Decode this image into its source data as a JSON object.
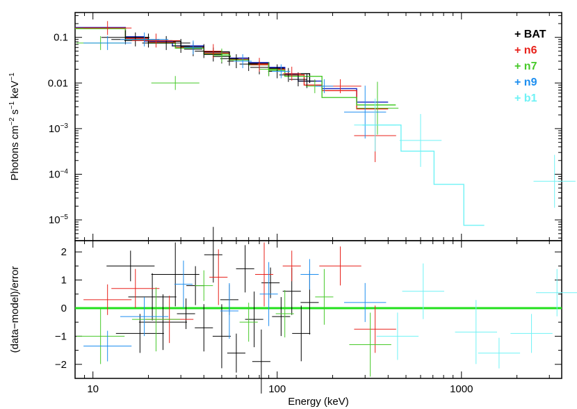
{
  "chart_data": {
    "type": "scatter",
    "xscale": "log",
    "xlim": [
      8,
      3500
    ],
    "xlabel": "Energy (keV)",
    "x_tick_labels": [
      {
        "value": 10,
        "label": "10"
      },
      {
        "value": 100,
        "label": "100"
      },
      {
        "value": 1000,
        "label": "1000"
      }
    ],
    "legend_position": "top-right",
    "series": [
      {
        "name": "+ BAT",
        "color": "#000000"
      },
      {
        "name": "+ n6",
        "color": "#e8211a"
      },
      {
        "name": "+ n7",
        "color": "#46c928"
      },
      {
        "name": "+ n9",
        "color": "#1c8ef0"
      },
      {
        "name": "+ b1",
        "color": "#6ff2f5"
      }
    ],
    "panels": [
      {
        "id": "spectrum",
        "ylabel_parts": [
          "Photons cm",
          "−2",
          " s",
          "−1",
          " keV",
          "−1"
        ],
        "yscale": "log",
        "ylim": [
          3.5e-06,
          0.35
        ],
        "y_tick_labels": [
          {
            "value": 0.1,
            "label": "0.1"
          },
          {
            "value": 0.01,
            "label": "0.01"
          },
          {
            "value": 0.001,
            "base": "10",
            "exp": "−3"
          },
          {
            "value": 0.0001,
            "base": "10",
            "exp": "−4"
          },
          {
            "value": 1e-05,
            "base": "10",
            "exp": "−5"
          }
        ],
        "models": [
          {
            "series": "+ BAT",
            "color": "#000000",
            "steps": [
              [
                8,
                0.16
              ],
              [
                15,
                0.1
              ],
              [
                20,
                0.082
              ],
              [
                30,
                0.062
              ],
              [
                40,
                0.048
              ],
              [
                55,
                0.035
              ],
              [
                70,
                0.027
              ],
              [
                90,
                0.021
              ],
              [
                110,
                0.016
              ],
              [
                150,
                0.01
              ]
            ]
          },
          {
            "series": "+ n9",
            "color": "#1020c0",
            "steps": [
              [
                8,
                0.165
              ],
              [
                15,
                0.103
              ],
              [
                19,
                0.083
              ],
              [
                27,
                0.065
              ],
              [
                40,
                0.045
              ],
              [
                55,
                0.035
              ],
              [
                70,
                0.028
              ],
              [
                90,
                0.022
              ],
              [
                110,
                0.016
              ],
              [
                130,
                0.011
              ],
              [
                175,
                0.0075
              ],
              [
                270,
                0.0038
              ],
              [
                400,
                0.0038
              ]
            ]
          },
          {
            "series": "+ n6",
            "color": "#e8211a",
            "steps": [
              [
                8,
                0.16
              ],
              [
                15,
                0.095
              ],
              [
                20,
                0.078
              ],
              [
                28,
                0.06
              ],
              [
                40,
                0.045
              ],
              [
                55,
                0.033
              ],
              [
                70,
                0.026
              ],
              [
                90,
                0.02
              ],
              [
                110,
                0.015
              ],
              [
                140,
                0.009
              ],
              [
                175,
                0.0068
              ],
              [
                270,
                0.0027
              ],
              [
                400,
                0.0027
              ]
            ]
          },
          {
            "series": "+ n7",
            "color": "#46c928",
            "steps": [
              [
                8,
                0.155
              ],
              [
                15,
                0.09
              ],
              [
                20,
                0.075
              ],
              [
                28,
                0.058
              ],
              [
                40,
                0.043
              ],
              [
                55,
                0.032
              ],
              [
                70,
                0.025
              ],
              [
                90,
                0.019
              ],
              [
                110,
                0.014
              ],
              [
                175,
                0.0048
              ],
              [
                270,
                0.0033
              ],
              [
                440,
                0.0033
              ]
            ]
          },
          {
            "series": "+ b1",
            "color": "#6ff2f5",
            "steps": [
              [
                290,
                0.0012
              ],
              [
                460,
                0.0012
              ],
              [
                470,
                0.00032
              ],
              [
                700,
                0.00032
              ],
              [
                710,
                6e-05
              ],
              [
                1020,
                6e-05
              ],
              [
                1030,
                7.6e-06
              ],
              [
                1330,
                7.6e-06
              ]
            ]
          }
        ],
        "points": [
          {
            "series": "+ BAT",
            "x": 15,
            "y": 0.1
          },
          {
            "series": "+ BAT",
            "x": 17,
            "y": 0.09
          },
          {
            "series": "+ BAT",
            "x": 20,
            "y": 0.085
          },
          {
            "series": "+ BAT",
            "x": 25,
            "y": 0.075
          },
          {
            "series": "+ BAT",
            "x": 30,
            "y": 0.065
          },
          {
            "series": "+ BAT",
            "x": 35,
            "y": 0.055
          },
          {
            "series": "+ BAT",
            "x": 40,
            "y": 0.05
          },
          {
            "series": "+ BAT",
            "x": 45,
            "y": 0.042
          },
          {
            "series": "+ BAT",
            "x": 50,
            "y": 0.038
          },
          {
            "series": "+ BAT",
            "x": 55,
            "y": 0.034
          },
          {
            "series": "+ BAT",
            "x": 60,
            "y": 0.03
          },
          {
            "series": "+ BAT",
            "x": 70,
            "y": 0.026
          },
          {
            "series": "+ BAT",
            "x": 80,
            "y": 0.022
          },
          {
            "series": "+ BAT",
            "x": 90,
            "y": 0.02
          },
          {
            "series": "+ BAT",
            "x": 100,
            "y": 0.018
          },
          {
            "series": "+ BAT",
            "x": 115,
            "y": 0.015
          },
          {
            "series": "+ BAT",
            "x": 130,
            "y": 0.012
          },
          {
            "series": "+ BAT",
            "x": 145,
            "y": 0.011
          },
          {
            "series": "+ n6",
            "x": 12,
            "y": 0.16
          },
          {
            "series": "+ n6",
            "x": 22,
            "y": 0.085
          },
          {
            "series": "+ n6",
            "x": 45,
            "y": 0.05
          },
          {
            "series": "+ n6",
            "x": 80,
            "y": 0.025
          },
          {
            "series": "+ n6",
            "x": 120,
            "y": 0.016
          },
          {
            "series": "+ n6",
            "x": 220,
            "y": 0.0085
          },
          {
            "series": "+ n6",
            "x": 340,
            "y": 0.0007
          },
          {
            "series": "+ n7",
            "x": 11,
            "y": 0.075
          },
          {
            "series": "+ n7",
            "x": 28,
            "y": 0.01
          },
          {
            "series": "+ n7",
            "x": 50,
            "y": 0.04
          },
          {
            "series": "+ n7",
            "x": 90,
            "y": 0.02
          },
          {
            "series": "+ n7",
            "x": 160,
            "y": 0.0085
          },
          {
            "series": "+ n7",
            "x": 350,
            "y": 0.0028
          },
          {
            "series": "+ n9",
            "x": 12,
            "y": 0.075
          },
          {
            "series": "+ n9",
            "x": 19,
            "y": 0.09
          },
          {
            "series": "+ n9",
            "x": 35,
            "y": 0.06
          },
          {
            "series": "+ n9",
            "x": 65,
            "y": 0.03
          },
          {
            "series": "+ n9",
            "x": 105,
            "y": 0.018
          },
          {
            "series": "+ n9",
            "x": 180,
            "y": 0.0085
          },
          {
            "series": "+ n9",
            "x": 300,
            "y": 0.0023
          },
          {
            "series": "+ b1",
            "x": 340,
            "y": 0.0012
          },
          {
            "series": "+ b1",
            "x": 600,
            "y": 0.00055
          },
          {
            "series": "+ b1",
            "x": 3200,
            "y": 7e-05
          }
        ]
      },
      {
        "id": "residuals",
        "ylabel": "(data−model)/error",
        "yscale": "linear",
        "ylim": [
          -2.5,
          2.4
        ],
        "y_tick_labels": [
          {
            "value": 2,
            "label": "2"
          },
          {
            "value": 1,
            "label": "1"
          },
          {
            "value": 0,
            "label": "0"
          },
          {
            "value": -1,
            "label": "−1"
          },
          {
            "value": -2,
            "label": "−2"
          }
        ],
        "zero_line": {
          "value": 0,
          "color": "#22e01c"
        },
        "points": [
          {
            "series": "+ BAT",
            "x": 16,
            "y": 1.5
          },
          {
            "series": "+ BAT",
            "x": 18,
            "y": -0.9
          },
          {
            "series": "+ BAT",
            "x": 21,
            "y": 0.4
          },
          {
            "series": "+ BAT",
            "x": 24,
            "y": -0.5
          },
          {
            "series": "+ BAT",
            "x": 28,
            "y": 1.2
          },
          {
            "series": "+ BAT",
            "x": 32,
            "y": -0.2
          },
          {
            "series": "+ BAT",
            "x": 36,
            "y": 0.8
          },
          {
            "series": "+ BAT",
            "x": 40,
            "y": -0.7
          },
          {
            "series": "+ BAT",
            "x": 45,
            "y": 1.9
          },
          {
            "series": "+ BAT",
            "x": 50,
            "y": -1.0
          },
          {
            "series": "+ BAT",
            "x": 55,
            "y": 0.3
          },
          {
            "series": "+ BAT",
            "x": 60,
            "y": -1.6
          },
          {
            "series": "+ BAT",
            "x": 67,
            "y": 1.4
          },
          {
            "series": "+ BAT",
            "x": 75,
            "y": -0.4
          },
          {
            "series": "+ BAT",
            "x": 82,
            "y": -1.9
          },
          {
            "series": "+ BAT",
            "x": 92,
            "y": 0.9
          },
          {
            "series": "+ BAT",
            "x": 105,
            "y": -0.3
          },
          {
            "series": "+ BAT",
            "x": 120,
            "y": 0.6
          },
          {
            "series": "+ BAT",
            "x": 135,
            "y": -0.9
          },
          {
            "series": "+ BAT",
            "x": 150,
            "y": 0.2
          },
          {
            "series": "+ n6",
            "x": 12,
            "y": 0.3
          },
          {
            "series": "+ n6",
            "x": 17,
            "y": 0.7
          },
          {
            "series": "+ n6",
            "x": 26,
            "y": -0.4
          },
          {
            "series": "+ n6",
            "x": 48,
            "y": 1.1
          },
          {
            "series": "+ n6",
            "x": 85,
            "y": 1.2
          },
          {
            "series": "+ n6",
            "x": 120,
            "y": 1.5
          },
          {
            "series": "+ n6",
            "x": 220,
            "y": 1.5
          },
          {
            "series": "+ n6",
            "x": 340,
            "y": -0.75
          },
          {
            "series": "+ n7",
            "x": 11,
            "y": -1.0
          },
          {
            "series": "+ n7",
            "x": 22,
            "y": -0.4
          },
          {
            "series": "+ n7",
            "x": 40,
            "y": 0.8
          },
          {
            "series": "+ n7",
            "x": 70,
            "y": -0.5
          },
          {
            "series": "+ n7",
            "x": 110,
            "y": -0.2
          },
          {
            "series": "+ n7",
            "x": 180,
            "y": 0.4
          },
          {
            "series": "+ n7",
            "x": 320,
            "y": -1.3
          },
          {
            "series": "+ n9",
            "x": 12,
            "y": -1.35
          },
          {
            "series": "+ n9",
            "x": 19,
            "y": -0.3
          },
          {
            "series": "+ n9",
            "x": 31,
            "y": 0.85
          },
          {
            "series": "+ n9",
            "x": 55,
            "y": -0.1
          },
          {
            "series": "+ n9",
            "x": 90,
            "y": 0.5
          },
          {
            "series": "+ n9",
            "x": 150,
            "y": 1.2
          },
          {
            "series": "+ n9",
            "x": 300,
            "y": 0.2
          },
          {
            "series": "+ b1",
            "x": 450,
            "y": -1.0
          },
          {
            "series": "+ b1",
            "x": 620,
            "y": 0.6
          },
          {
            "series": "+ b1",
            "x": 1200,
            "y": -0.85
          },
          {
            "series": "+ b1",
            "x": 1600,
            "y": -1.6
          },
          {
            "series": "+ b1",
            "x": 2400,
            "y": -0.9
          },
          {
            "series": "+ b1",
            "x": 3300,
            "y": 0.55
          }
        ]
      }
    ]
  }
}
